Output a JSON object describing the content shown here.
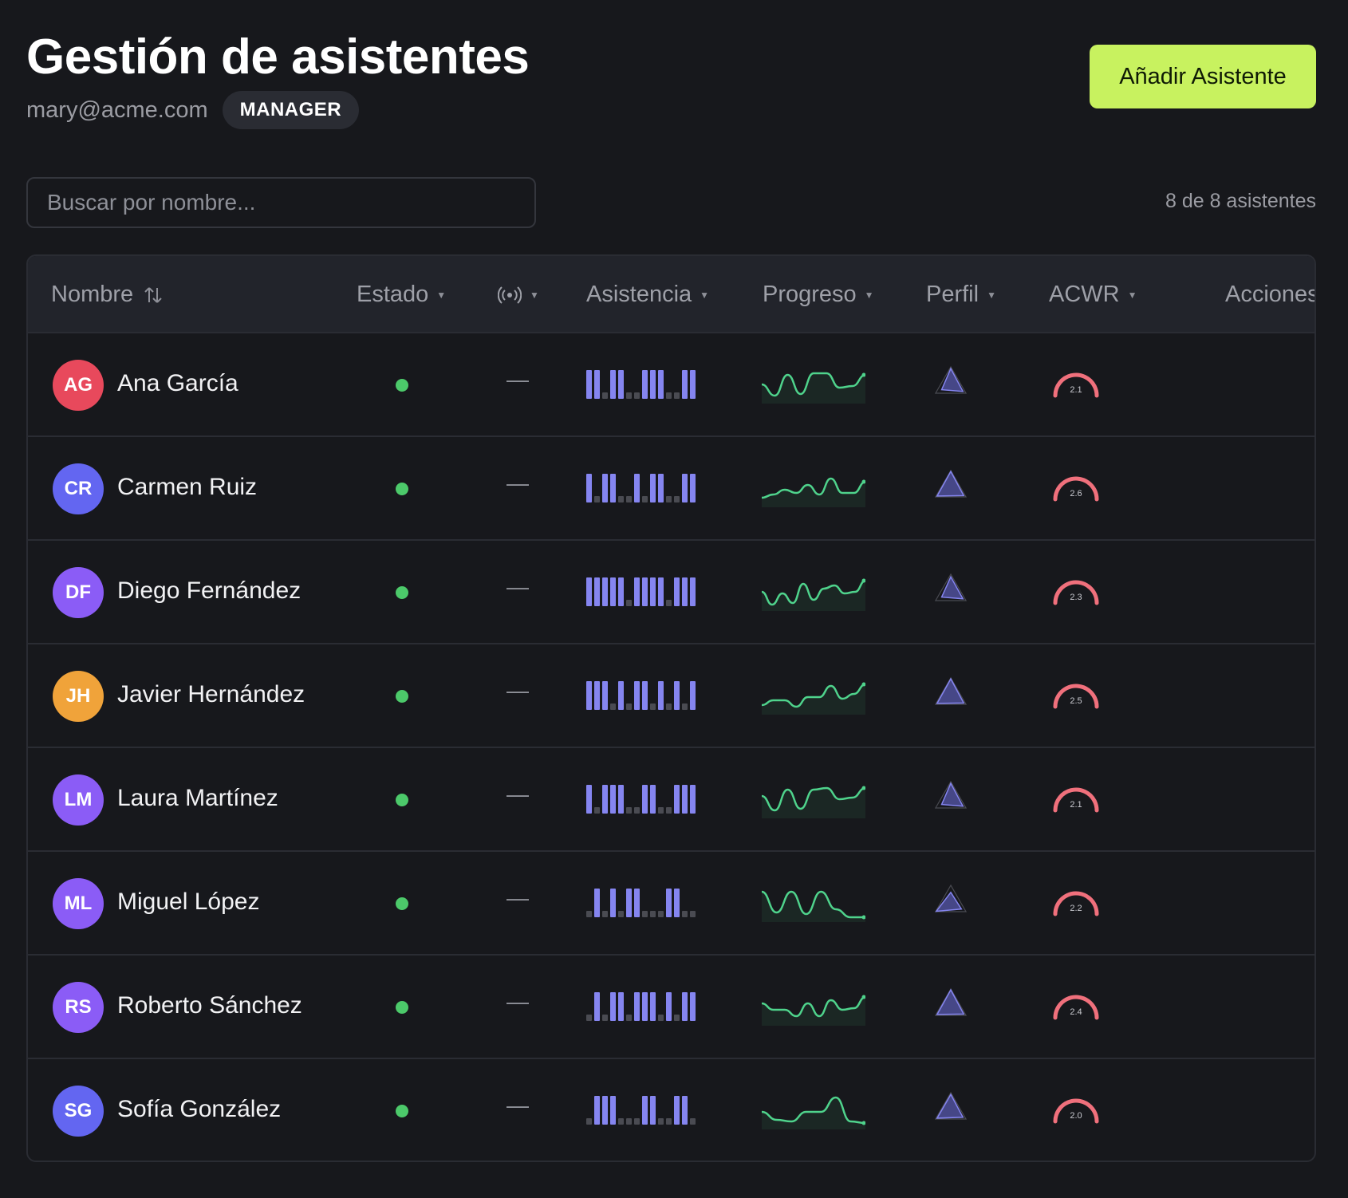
{
  "header": {
    "title": "Gestión de asistentes",
    "email": "mary@acme.com",
    "role": "MANAGER",
    "add_button": "Añadir Asistente"
  },
  "search": {
    "placeholder": "Buscar por nombre...",
    "count_label": "8 de 8 asistentes"
  },
  "columns": {
    "name": "Nombre",
    "status": "Estado",
    "signal_icon": "broadcast-icon",
    "attendance": "Asistencia",
    "progress": "Progreso",
    "profile": "Perfil",
    "acwr": "ACWR",
    "actions": "Acciones"
  },
  "colors": {
    "accent": "#c8f25f",
    "status_active": "#4cc96a",
    "attendance_bar": "#8585f0",
    "progress_line": "#4fd38c",
    "acwr_gauge": "#f0707c",
    "profile_fill": "#6d6fe0"
  },
  "rows": [
    {
      "initials": "AG",
      "name": "Ana García",
      "avatar_color": "#e8495c",
      "status": "active",
      "signal": "—",
      "attendance": [
        1,
        1,
        0,
        1,
        1,
        0,
        0,
        1,
        1,
        1,
        0,
        0,
        1,
        1
      ],
      "progress": [
        0.5,
        0.15,
        0.8,
        0.2,
        0.85,
        0.85,
        0.4,
        0.45,
        0.8
      ],
      "profile": [
        0.9,
        0.6,
        0.8
      ],
      "acwr": "2.1",
      "acwr_fill": 0.85
    },
    {
      "initials": "CR",
      "name": "Carmen Ruiz",
      "avatar_color": "#6366f1",
      "status": "active",
      "signal": "—",
      "attendance": [
        1,
        0,
        1,
        1,
        0,
        0,
        1,
        0,
        1,
        1,
        0,
        0,
        1,
        1
      ],
      "progress": [
        0.2,
        0.3,
        0.45,
        0.35,
        0.6,
        0.3,
        0.8,
        0.35,
        0.35,
        0.7
      ],
      "profile": [
        0.95,
        0.9,
        0.85
      ],
      "acwr": "2.6",
      "acwr_fill": 0.7
    },
    {
      "initials": "DF",
      "name": "Diego Fernández",
      "avatar_color": "#8b5cf6",
      "status": "active",
      "signal": "—",
      "attendance": [
        1,
        1,
        1,
        1,
        1,
        0,
        1,
        1,
        1,
        1,
        0,
        1,
        1,
        1
      ],
      "progress": [
        0.5,
        0.1,
        0.45,
        0.15,
        0.75,
        0.25,
        0.6,
        0.7,
        0.45,
        0.5,
        0.85
      ],
      "profile": [
        0.85,
        0.6,
        0.8
      ],
      "acwr": "2.3",
      "acwr_fill": 0.72
    },
    {
      "initials": "JH",
      "name": "Javier Hernández",
      "avatar_color": "#f0a33a",
      "status": "active",
      "signal": "—",
      "attendance": [
        1,
        1,
        1,
        0,
        1,
        0,
        1,
        1,
        0,
        1,
        0,
        1,
        0,
        1
      ],
      "progress": [
        0.2,
        0.35,
        0.35,
        0.15,
        0.45,
        0.45,
        0.8,
        0.4,
        0.55,
        0.85
      ],
      "profile": [
        0.95,
        0.9,
        0.85
      ],
      "acwr": "2.5",
      "acwr_fill": 0.7
    },
    {
      "initials": "LM",
      "name": "Laura Martínez",
      "avatar_color": "#8b5cf6",
      "status": "active",
      "signal": "—",
      "attendance": [
        1,
        0,
        1,
        1,
        1,
        0,
        0,
        1,
        1,
        0,
        0,
        1,
        1,
        1
      ],
      "progress": [
        0.6,
        0.15,
        0.8,
        0.2,
        0.8,
        0.85,
        0.5,
        0.55,
        0.85
      ],
      "profile": [
        0.9,
        0.6,
        0.8
      ],
      "acwr": "2.1",
      "acwr_fill": 0.85
    },
    {
      "initials": "ML",
      "name": "Miguel López",
      "avatar_color": "#8b5cf6",
      "status": "active",
      "signal": "—",
      "attendance": [
        0,
        1,
        0,
        1,
        0,
        1,
        1,
        0,
        0,
        0,
        1,
        1,
        0,
        0
      ],
      "progress": [
        0.85,
        0.2,
        0.85,
        0.15,
        0.85,
        0.3,
        0.05,
        0.05
      ],
      "profile": [
        0.6,
        0.95,
        0.7
      ],
      "acwr": "2.2",
      "acwr_fill": 0.72
    },
    {
      "initials": "RS",
      "name": "Roberto Sánchez",
      "avatar_color": "#8b5cf6",
      "status": "active",
      "signal": "—",
      "attendance": [
        0,
        1,
        0,
        1,
        1,
        0,
        1,
        1,
        1,
        0,
        1,
        0,
        1,
        1
      ],
      "progress": [
        0.6,
        0.4,
        0.4,
        0.2,
        0.6,
        0.2,
        0.7,
        0.4,
        0.45,
        0.8
      ],
      "profile": [
        0.95,
        0.9,
        0.85
      ],
      "acwr": "2.4",
      "acwr_fill": 0.7
    },
    {
      "initials": "SG",
      "name": "Sofía González",
      "avatar_color": "#6366f1",
      "status": "active",
      "signal": "—",
      "attendance": [
        0,
        1,
        1,
        1,
        0,
        0,
        0,
        1,
        1,
        0,
        0,
        1,
        1,
        0
      ],
      "progress": [
        0.45,
        0.2,
        0.15,
        0.45,
        0.45,
        0.9,
        0.15,
        0.1
      ],
      "profile": [
        0.9,
        0.9,
        0.8
      ],
      "acwr": "2.0",
      "acwr_fill": 0.75
    }
  ]
}
